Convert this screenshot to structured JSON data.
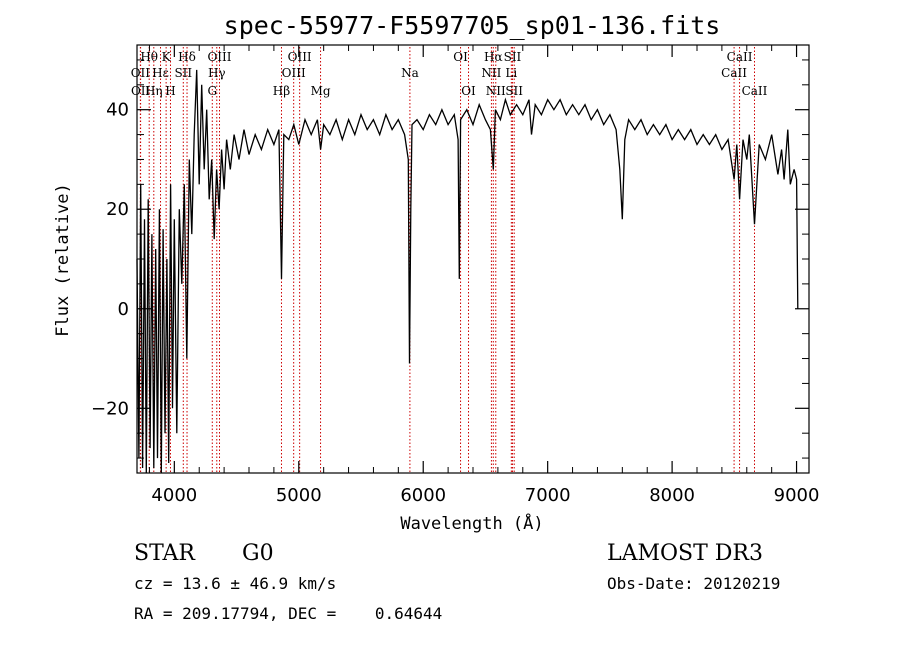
{
  "chart_data": {
    "type": "line",
    "title": "spec-55977-F5597705_sp01-136.fits",
    "xlabel": "Wavelength (Å)",
    "ylabel": "Flux (relative)",
    "xlim": [
      3700,
      9100
    ],
    "ylim": [
      -33,
      53
    ],
    "x_ticks": [
      4000,
      5000,
      6000,
      7000,
      8000,
      9000
    ],
    "y_ticks": [
      -20,
      0,
      20,
      40
    ],
    "x_tick_labels": [
      "4000",
      "5000",
      "6000",
      "7000",
      "8000",
      "9000"
    ],
    "y_tick_labels": [
      "−20",
      "0",
      "20",
      "40"
    ],
    "series": [
      {
        "name": "flux",
        "points": [
          [
            3700,
            10
          ],
          [
            3715,
            -30
          ],
          [
            3730,
            25
          ],
          [
            3745,
            -32
          ],
          [
            3760,
            18
          ],
          [
            3775,
            -33
          ],
          [
            3790,
            22
          ],
          [
            3805,
            -28
          ],
          [
            3820,
            15
          ],
          [
            3835,
            -32
          ],
          [
            3850,
            12
          ],
          [
            3865,
            -30
          ],
          [
            3880,
            20
          ],
          [
            3895,
            -33
          ],
          [
            3910,
            16
          ],
          [
            3925,
            -25
          ],
          [
            3940,
            10
          ],
          [
            3955,
            -31
          ],
          [
            3970,
            25
          ],
          [
            3985,
            -20
          ],
          [
            4000,
            18
          ],
          [
            4020,
            -25
          ],
          [
            4040,
            20
          ],
          [
            4060,
            5
          ],
          [
            4080,
            25
          ],
          [
            4100,
            -10
          ],
          [
            4120,
            30
          ],
          [
            4140,
            15
          ],
          [
            4160,
            35
          ],
          [
            4180,
            48
          ],
          [
            4200,
            25
          ],
          [
            4220,
            45
          ],
          [
            4240,
            28
          ],
          [
            4260,
            40
          ],
          [
            4280,
            22
          ],
          [
            4300,
            30
          ],
          [
            4320,
            14
          ],
          [
            4340,
            28
          ],
          [
            4360,
            20
          ],
          [
            4380,
            32
          ],
          [
            4400,
            24
          ],
          [
            4420,
            34
          ],
          [
            4450,
            28
          ],
          [
            4480,
            35
          ],
          [
            4520,
            30
          ],
          [
            4560,
            36
          ],
          [
            4600,
            31
          ],
          [
            4650,
            35
          ],
          [
            4700,
            32
          ],
          [
            4750,
            36
          ],
          [
            4800,
            33
          ],
          [
            4840,
            36
          ],
          [
            4861,
            6
          ],
          [
            4880,
            35
          ],
          [
            4920,
            34
          ],
          [
            4960,
            37
          ],
          [
            5000,
            33
          ],
          [
            5050,
            38
          ],
          [
            5100,
            35
          ],
          [
            5150,
            38
          ],
          [
            5175,
            32
          ],
          [
            5200,
            37
          ],
          [
            5250,
            35
          ],
          [
            5300,
            38
          ],
          [
            5350,
            34
          ],
          [
            5400,
            38
          ],
          [
            5450,
            35
          ],
          [
            5500,
            39
          ],
          [
            5550,
            36
          ],
          [
            5600,
            38
          ],
          [
            5650,
            35
          ],
          [
            5700,
            39
          ],
          [
            5750,
            36
          ],
          [
            5800,
            38
          ],
          [
            5850,
            35
          ],
          [
            5880,
            30
          ],
          [
            5890,
            -11
          ],
          [
            5900,
            20
          ],
          [
            5910,
            37
          ],
          [
            5950,
            38
          ],
          [
            6000,
            36
          ],
          [
            6050,
            39
          ],
          [
            6100,
            37
          ],
          [
            6150,
            40
          ],
          [
            6200,
            37
          ],
          [
            6250,
            39
          ],
          [
            6280,
            34
          ],
          [
            6290,
            6
          ],
          [
            6300,
            38
          ],
          [
            6350,
            40
          ],
          [
            6400,
            37
          ],
          [
            6450,
            41
          ],
          [
            6500,
            38
          ],
          [
            6540,
            36
          ],
          [
            6563,
            28
          ],
          [
            6580,
            40
          ],
          [
            6620,
            38
          ],
          [
            6660,
            42
          ],
          [
            6700,
            39
          ],
          [
            6750,
            41
          ],
          [
            6800,
            39
          ],
          [
            6850,
            42
          ],
          [
            6870,
            35
          ],
          [
            6900,
            41
          ],
          [
            6950,
            39
          ],
          [
            7000,
            42
          ],
          [
            7050,
            40
          ],
          [
            7100,
            42
          ],
          [
            7150,
            39
          ],
          [
            7200,
            41
          ],
          [
            7250,
            39
          ],
          [
            7300,
            41
          ],
          [
            7350,
            38
          ],
          [
            7400,
            40
          ],
          [
            7450,
            37
          ],
          [
            7500,
            39
          ],
          [
            7550,
            36
          ],
          [
            7580,
            28
          ],
          [
            7600,
            18
          ],
          [
            7620,
            34
          ],
          [
            7650,
            38
          ],
          [
            7700,
            36
          ],
          [
            7750,
            38
          ],
          [
            7800,
            35
          ],
          [
            7850,
            37
          ],
          [
            7900,
            35
          ],
          [
            7950,
            37
          ],
          [
            8000,
            34
          ],
          [
            8050,
            36
          ],
          [
            8100,
            34
          ],
          [
            8150,
            36
          ],
          [
            8200,
            33
          ],
          [
            8250,
            35
          ],
          [
            8300,
            33
          ],
          [
            8350,
            35
          ],
          [
            8400,
            32
          ],
          [
            8450,
            34
          ],
          [
            8498,
            26
          ],
          [
            8520,
            33
          ],
          [
            8542,
            22
          ],
          [
            8570,
            34
          ],
          [
            8600,
            30
          ],
          [
            8620,
            35
          ],
          [
            8662,
            17
          ],
          [
            8700,
            33
          ],
          [
            8750,
            30
          ],
          [
            8800,
            35
          ],
          [
            8850,
            27
          ],
          [
            8880,
            32
          ],
          [
            8900,
            26
          ],
          [
            8930,
            36
          ],
          [
            8950,
            25
          ],
          [
            8980,
            28
          ],
          [
            9000,
            26
          ],
          [
            9010,
            0
          ]
        ]
      }
    ],
    "spectral_lines": [
      {
        "name": "Hθ",
        "x": 3798,
        "row": 0
      },
      {
        "name": "OII",
        "x": 3727,
        "row": 1
      },
      {
        "name": "OII",
        "x": 3729,
        "row": 2
      },
      {
        "name": "Hη",
        "x": 3835,
        "row": 2
      },
      {
        "name": "Hε",
        "x": 3889,
        "row": 1
      },
      {
        "name": "K",
        "x": 3934,
        "row": 0
      },
      {
        "name": "SII",
        "x": 4072,
        "row": 1
      },
      {
        "name": "H",
        "x": 3969,
        "row": 2
      },
      {
        "name": "Hδ",
        "x": 4102,
        "row": 0
      },
      {
        "name": "OIII",
        "x": 4363,
        "row": 0
      },
      {
        "name": "Hγ",
        "x": 4341,
        "row": 1
      },
      {
        "name": "G",
        "x": 4305,
        "row": 2
      },
      {
        "name": "OIII",
        "x": 5007,
        "row": 0
      },
      {
        "name": "OIII",
        "x": 4959,
        "row": 1
      },
      {
        "name": "Hβ",
        "x": 4861,
        "row": 2
      },
      {
        "name": "Mg",
        "x": 5175,
        "row": 2
      },
      {
        "name": "Na",
        "x": 5893,
        "row": 1
      },
      {
        "name": "OI",
        "x": 6300,
        "row": 0
      },
      {
        "name": "OI",
        "x": 6364,
        "row": 2
      },
      {
        "name": "Hα",
        "x": 6563,
        "row": 0
      },
      {
        "name": "NII",
        "x": 6548,
        "row": 1
      },
      {
        "name": "NII",
        "x": 6583,
        "row": 2
      },
      {
        "name": "SII",
        "x": 6717,
        "row": 0
      },
      {
        "name": "Li",
        "x": 6708,
        "row": 1
      },
      {
        "name": "SII",
        "x": 6731,
        "row": 2
      },
      {
        "name": "CaII",
        "x": 8542,
        "row": 0
      },
      {
        "name": "CaII",
        "x": 8498,
        "row": 1
      },
      {
        "name": "CaII",
        "x": 8662,
        "row": 2
      }
    ]
  },
  "info": {
    "class_label": "STAR",
    "subclass": "G0",
    "survey": "LAMOST DR3",
    "cz": "cz = 13.6 ± 46.9 km/s",
    "obs_date": "Obs-Date: 20120219",
    "coords": "RA = 209.17794, DEC =    0.64644"
  },
  "colors": {
    "line": "#000000",
    "marker": "#cc0000",
    "background": "#ffffff"
  }
}
